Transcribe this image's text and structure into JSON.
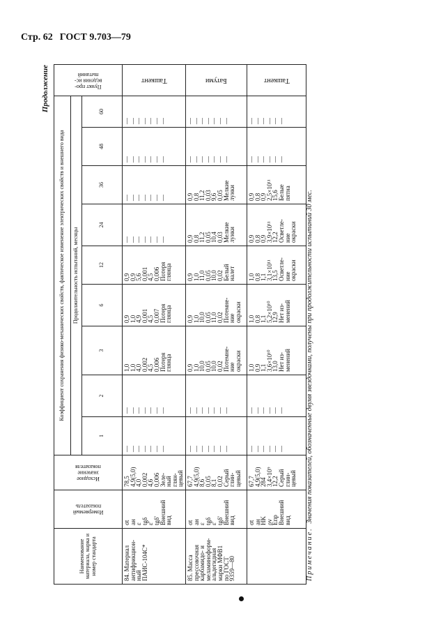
{
  "page_header": {
    "page": "Стр. 62",
    "standard": "ГОСТ 9.703—79"
  },
  "continuation": "Продолжение",
  "header": {
    "name": [
      "Наименование",
      "материала, марка и",
      "номер стандарта"
    ],
    "indicator": [
      "Измеряемый",
      "показатель"
    ],
    "initial": [
      "Исходное",
      "значение",
      "показателя"
    ],
    "group": "Коэффициент сохранения физико-механических свойств, фактическое изменение электрических свойств и внешнего вида",
    "duration": "Продолжительность испытаний, месяцы",
    "months": [
      "1",
      "2",
      "3",
      "6",
      "12",
      "24",
      "36",
      "48",
      "60"
    ],
    "point": [
      "Пункт про-",
      "ведения ис-",
      "пытаний"
    ]
  },
  "rows": [
    {
      "name": [
        "84. Материал",
        "антифрикцион-",
        "ный",
        "ПАИС-104С*"
      ],
      "indicators": [
        "σt",
        "aн",
        "ε",
        "tgδ",
        "ε'",
        "tgδ'",
        "Внешний",
        "вид"
      ],
      "initial": [
        "78,5",
        "4,9(5,0)",
        "4,0",
        "0,002",
        "4,6",
        "0,006",
        "Зеле-",
        "ный",
        "глян-",
        "цевый"
      ],
      "months": [
        [
          "—",
          "—",
          "—",
          "—",
          "—",
          "—",
          "—"
        ],
        [
          "—",
          "—",
          "—",
          "—",
          "—",
          "—",
          "—"
        ],
        [
          "1,0",
          "1,0",
          "4,0",
          "0,002",
          "4,5",
          "0,006",
          "Потеря",
          "глянца"
        ],
        [
          "0,9",
          "1,0",
          "4,9",
          "0,001",
          "4,5",
          "0,007",
          "Потеря",
          "глянца"
        ],
        [
          "0,9",
          "0,9",
          "5,6",
          "0,001",
          "4,5",
          "0,006",
          "Потеря",
          "глянца"
        ],
        [
          "—",
          "—",
          "—",
          "—",
          "—",
          "—",
          "—"
        ],
        [
          "—",
          "—",
          "—",
          "—",
          "—",
          "—",
          "—"
        ],
        [
          "—",
          "—",
          "—",
          "—",
          "—",
          "—",
          "—"
        ],
        [
          "—",
          "—",
          "—",
          "—",
          "—",
          "—",
          "—"
        ]
      ],
      "point": "Ташкент"
    },
    {
      "name": [
        "85. Масса",
        "прессовочная",
        "карбамидо- и",
        "меламиноформ-",
        "альдегидная",
        "марки МФВ1",
        "по ГОСТ",
        "9359—80"
      ],
      "indicators": [
        "σt",
        "aн",
        "ε",
        "tgδ",
        "ε'",
        "tgδ'",
        "Внешний",
        "вид"
      ],
      "initial": [
        "67,7",
        "4,9(5,0)",
        "8,6",
        "0,05",
        "8,1",
        "0,02",
        "Серый",
        "глин-",
        "цевый"
      ],
      "months": [
        [
          "—",
          "—",
          "—",
          "—",
          "—",
          "—",
          "—"
        ],
        [
          "—",
          "—",
          "—",
          "—",
          "—",
          "—",
          "—"
        ],
        [
          "0,9",
          "1,0",
          "10,0",
          "0,05",
          "10,0",
          "0,02",
          "Потемне-",
          "ние",
          "окраски"
        ],
        [
          "0,9",
          "1,0",
          "10,0",
          "0,05",
          "11,0",
          "0,02",
          "Потемне-",
          "ние",
          "окраски"
        ],
        [
          "0,9",
          "1,0",
          "11,0",
          "0,05",
          "10,0",
          "0,02",
          "Белый",
          "налет"
        ],
        [
          "0,9",
          "0,8",
          "11,2",
          "0,05",
          "10,4",
          "0,03",
          "Мелкие",
          "лунки"
        ],
        [
          "0,9",
          "0,8",
          "11,2",
          "0,03",
          "9,6",
          "0,05",
          "Мелкие",
          "лунки"
        ],
        [
          "—",
          "—",
          "—",
          "—",
          "—",
          "—",
          "—"
        ],
        [
          "—",
          "—",
          "—",
          "—",
          "—",
          "—",
          "—"
        ]
      ],
      "point": "Батуми"
    },
    {
      "name": [],
      "indicators": [
        "σt",
        "aн",
        "HK",
        "ρv",
        "Eпр",
        "Внешний",
        "вид"
      ],
      "initial": [
        "67,7",
        "4,9(5,0)",
        "284",
        "3,4×10⁹",
        "12,2",
        "Серый",
        "глин-",
        "цевый"
      ],
      "months": [
        [
          "—",
          "—",
          "—",
          "—",
          "—",
          "—"
        ],
        [
          "—",
          "—",
          "—",
          "—",
          "—",
          "—"
        ],
        [
          "1,0",
          "0,9",
          "1,1",
          "3,6×10¹⁰",
          "13,0",
          "Нет из-",
          "менений"
        ],
        [
          "1,0",
          "0,8",
          "1,1",
          "5,2×10¹⁰",
          "12,9",
          "Нет из-",
          "менений"
        ],
        [
          "1,0",
          "0,8",
          "1,1",
          "3,1×10¹¹",
          "13,5",
          "Осветле-",
          "ние",
          "окраски"
        ],
        [
          "0,9",
          "0,8",
          "0,9",
          "3,9×10¹¹",
          "12,2",
          "Осветле-",
          "ние",
          "окраски"
        ],
        [
          "0,9",
          "0,8",
          "0,9",
          "2,5×10¹¹",
          "15,6",
          "Белые",
          "пятна"
        ],
        [
          "—",
          "—",
          "—",
          "—",
          "—",
          "—"
        ],
        [
          "—",
          "—",
          "—",
          "—",
          "—",
          "—"
        ]
      ],
      "point": "Ташкент"
    }
  ],
  "note": {
    "label": "Примечание.",
    "text": "Значения показателей, обозначенные двумя звездочками, получены при продолжительности испытаний 30 мес."
  }
}
